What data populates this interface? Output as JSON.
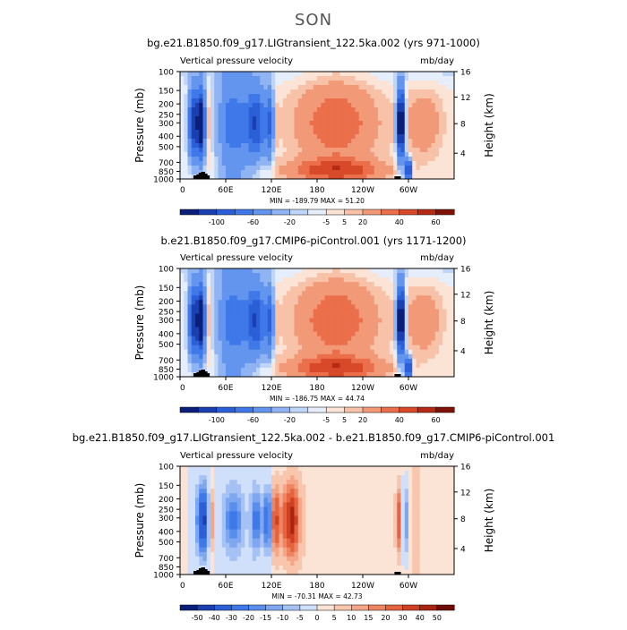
{
  "figure": {
    "season": "SON"
  },
  "chart_data": [
    {
      "type": "heatmap",
      "title": "bg.e21.B1850.f09_g17.LIGtransient_122.5ka.002 (yrs 971-1000)",
      "left_label": "Vertical pressure velocity",
      "right_label": "mb/day",
      "ylabel": "Pressure (mb)",
      "y2label": "Height (km)",
      "yticks": [
        "100",
        "150",
        "200",
        "250",
        "300",
        "400",
        "500",
        "700",
        "850",
        "1000"
      ],
      "y2ticks": [
        "16",
        "12",
        "8",
        "4"
      ],
      "xticks": [
        "0",
        "60E",
        "120E",
        "180",
        "120W",
        "60W"
      ],
      "stats": "MIN = -189.79   MAX =  51.20",
      "colorbar_labels": [
        "-100",
        "-60",
        "-20",
        "-5",
        "5",
        "20",
        "40",
        "60"
      ],
      "variant": "abs"
    },
    {
      "type": "heatmap",
      "title": "b.e21.B1850.f09_g17.CMIP6-piControl.001 (yrs 1171-1200)",
      "left_label": "Vertical pressure velocity",
      "right_label": "mb/day",
      "ylabel": "Pressure (mb)",
      "y2label": "Height (km)",
      "yticks": [
        "100",
        "150",
        "200",
        "250",
        "300",
        "400",
        "500",
        "700",
        "850",
        "1000"
      ],
      "y2ticks": [
        "16",
        "12",
        "8",
        "4"
      ],
      "xticks": [
        "0",
        "60E",
        "120E",
        "180",
        "120W",
        "60W"
      ],
      "stats": "MIN = -186.75   MAX =  44.74",
      "colorbar_labels": [
        "-100",
        "-60",
        "-20",
        "-5",
        "5",
        "20",
        "40",
        "60"
      ],
      "variant": "abs"
    },
    {
      "type": "heatmap",
      "title": "bg.e21.B1850.f09_g17.LIGtransient_122.5ka.002 - b.e21.B1850.f09_g17.CMIP6-piControl.001",
      "left_label": "Vertical pressure velocity",
      "right_label": "mb/day",
      "ylabel": "Pressure (mb)",
      "y2label": "Height (km)",
      "yticks": [
        "100",
        "150",
        "200",
        "250",
        "300",
        "400",
        "500",
        "700",
        "850",
        "1000"
      ],
      "y2ticks": [
        "16",
        "12",
        "8",
        "4"
      ],
      "xticks": [
        "0",
        "60E",
        "120E",
        "180",
        "120W",
        "60W"
      ],
      "stats": "MIN = -70.31   MAX =  42.73",
      "colorbar_labels": [
        "-50",
        "-40",
        "-30",
        "-20",
        "-15",
        "-10",
        "-5",
        "0",
        "5",
        "10",
        "15",
        "20",
        "30",
        "40",
        "50"
      ],
      "variant": "diff"
    }
  ],
  "colors": {
    "abs_scale": [
      "#0b1f7a",
      "#1a3fb0",
      "#2b5fd8",
      "#3f78e8",
      "#6395ee",
      "#8fb3f3",
      "#c0d6f8",
      "#e7eefb",
      "#fbe3d6",
      "#f7c2a8",
      "#f29a78",
      "#ea6f4a",
      "#d8492a",
      "#b52a14",
      "#7f1208"
    ],
    "diff_scale": [
      "#0b1f7a",
      "#1a3fb0",
      "#2b5fd8",
      "#3f78e8",
      "#5a8eec",
      "#7ea7f0",
      "#a6c2f5",
      "#d0e0fa",
      "#fbe3d6",
      "#f7c6ad",
      "#f3a688",
      "#ee8562",
      "#e5633f",
      "#cf4122",
      "#a82510",
      "#6e0c05"
    ]
  }
}
